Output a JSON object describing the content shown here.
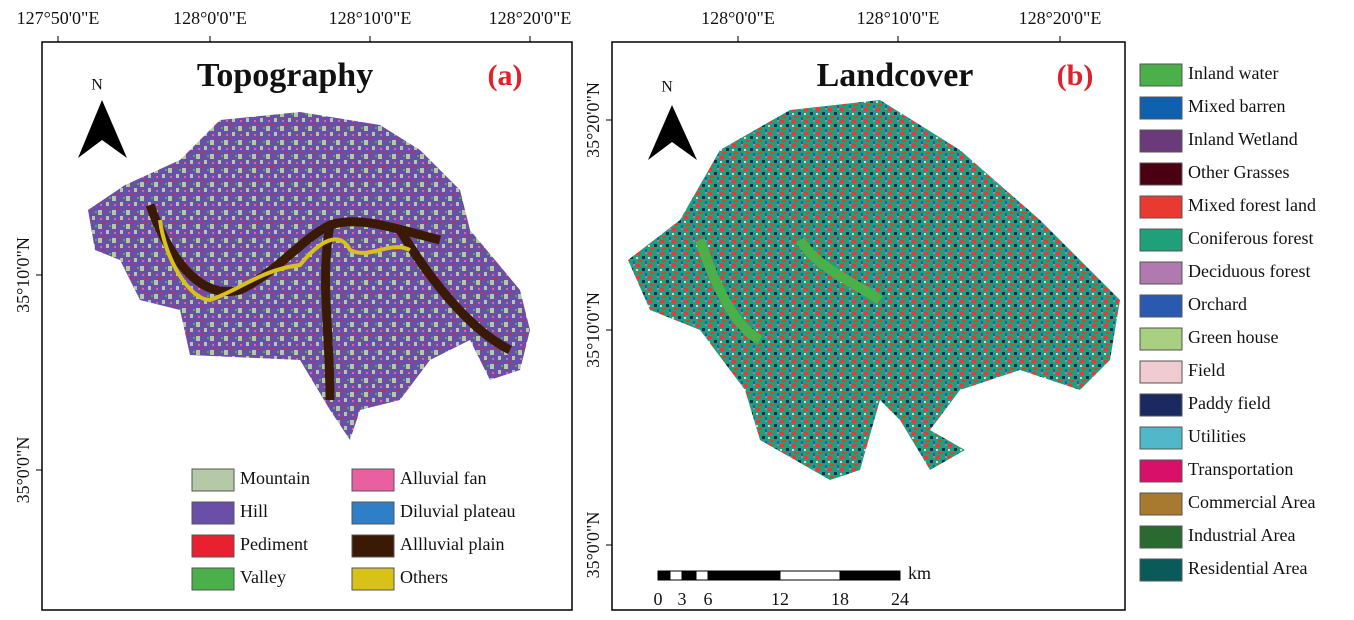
{
  "panels": [
    {
      "title": "Topography",
      "label": "(a)",
      "north": "N",
      "top_labels": [
        "127°50'0\"E",
        "128°0'0\"E",
        "128°10'0\"E",
        "128°20'0\"E"
      ],
      "left_labels": [
        "35°10'0\"N",
        "35°0'0\"N"
      ],
      "legend": [
        {
          "name": "Mountain",
          "color": "#b5c9a8"
        },
        {
          "name": "Hill",
          "color": "#6a4fa8"
        },
        {
          "name": "Pediment",
          "color": "#e8202f"
        },
        {
          "name": "Valley",
          "color": "#4cb04a"
        },
        {
          "name": "Alluvial fan",
          "color": "#e8609f"
        },
        {
          "name": "Diluvial plateau",
          "color": "#2f7fc8"
        },
        {
          "name": "Allluvial plain",
          "color": "#3a1a05"
        },
        {
          "name": "Others",
          "color": "#d8c21a"
        }
      ]
    },
    {
      "title": "Landcover",
      "label": "(b)",
      "north": "N",
      "top_labels": [
        "128°0'0\"E",
        "128°10'0\"E",
        "128°20'0\"E"
      ],
      "left_labels": [
        "35°20'0\"N",
        "35°10'0\"N",
        "35°0'0\"N"
      ],
      "legend": [
        {
          "name": "Inland water",
          "color": "#4cb04a"
        },
        {
          "name": "Mixed barren",
          "color": "#1060b0"
        },
        {
          "name": "Inland Wetland",
          "color": "#6a3a7a"
        },
        {
          "name": "Other Grasses",
          "color": "#4a0010"
        },
        {
          "name": "Mixed forest land",
          "color": "#e83a30"
        },
        {
          "name": "Coniferous forest",
          "color": "#20a07a"
        },
        {
          "name": "Deciduous forest",
          "color": "#b07ab0"
        },
        {
          "name": "Orchard",
          "color": "#2a5ab0"
        },
        {
          "name": "Green house",
          "color": "#a8d080"
        },
        {
          "name": "Field",
          "color": "#f0ccd0"
        },
        {
          "name": "Paddy field",
          "color": "#1a2a60"
        },
        {
          "name": "Utilities",
          "color": "#50b8c8"
        },
        {
          "name": "Transportation",
          "color": "#d8106a"
        },
        {
          "name": "Commercial Area",
          "color": "#a87a30"
        },
        {
          "name": "Industrial Area",
          "color": "#2a6a30"
        },
        {
          "name": "Residential Area",
          "color": "#0a5a5a"
        }
      ]
    }
  ],
  "scale_bar": {
    "labels": [
      "0",
      "3",
      "6",
      "12",
      "18",
      "24"
    ],
    "unit": "km"
  }
}
